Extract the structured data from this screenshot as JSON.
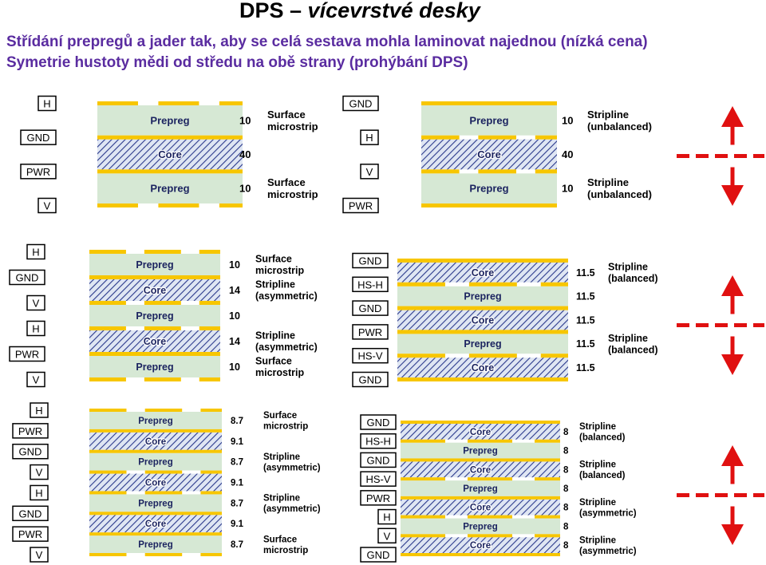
{
  "title_prefix": "DPS – ",
  "title_italic": "vícevrstvé desky",
  "subtitle1": "Střídání prepregů a jader tak, aby se celá sestava mohla laminovat najednou (nízká cena)",
  "subtitle2": "Symetrie hustoty mědi od středu na obě strany (prohýbání DPS)",
  "colors": {
    "copper": "#f7c600",
    "prepreg": "#d6e8d4",
    "core_stripe": "#2b3a8c",
    "core_bg": "#dfe6f3",
    "arrow": "#e01010",
    "text": "#000000",
    "subtitle": "#5a2ca0"
  },
  "stackups": [
    {
      "id": "4-layer-a",
      "layers": [
        {
          "name": "H",
          "type": "signal"
        },
        {
          "name": "GND",
          "type": "plane"
        },
        {
          "name": "PWR",
          "type": "plane"
        },
        {
          "name": "V",
          "type": "signal"
        }
      ],
      "dielectrics": [
        {
          "kind": "Prepreg",
          "thickness": "10",
          "note": "Surface microstrip"
        },
        {
          "kind": "Core",
          "thickness": "40",
          "note": ""
        },
        {
          "kind": "Prepreg",
          "thickness": "10",
          "note": "Surface microstrip"
        }
      ]
    },
    {
      "id": "4-layer-b",
      "layers": [
        {
          "name": "GND",
          "type": "plane"
        },
        {
          "name": "H",
          "type": "signal"
        },
        {
          "name": "V",
          "type": "signal"
        },
        {
          "name": "PWR",
          "type": "plane"
        }
      ],
      "dielectrics": [
        {
          "kind": "Prepreg",
          "thickness": "10",
          "note": "Stripline (unbalanced)"
        },
        {
          "kind": "Core",
          "thickness": "40",
          "note": ""
        },
        {
          "kind": "Prepreg",
          "thickness": "10",
          "note": "Stripline (unbalanced)"
        }
      ]
    },
    {
      "id": "6-layer-a",
      "layers": [
        {
          "name": "H",
          "type": "signal"
        },
        {
          "name": "GND",
          "type": "plane"
        },
        {
          "name": "V",
          "type": "signal"
        },
        {
          "name": "H",
          "type": "signal"
        },
        {
          "name": "PWR",
          "type": "plane"
        },
        {
          "name": "V",
          "type": "signal"
        }
      ],
      "dielectrics": [
        {
          "kind": "Prepreg",
          "thickness": "10",
          "note": "Surface microstrip"
        },
        {
          "kind": "Core",
          "thickness": "14",
          "note": "Stripline (asymmetric)"
        },
        {
          "kind": "Prepreg",
          "thickness": "10",
          "note": ""
        },
        {
          "kind": "Core",
          "thickness": "14",
          "note": "Stripline (asymmetric)"
        },
        {
          "kind": "Prepreg",
          "thickness": "10",
          "note": "Surface microstrip"
        }
      ]
    },
    {
      "id": "6-layer-b",
      "layers": [
        {
          "name": "GND",
          "type": "plane"
        },
        {
          "name": "HS-H",
          "type": "signal"
        },
        {
          "name": "GND",
          "type": "plane"
        },
        {
          "name": "PWR",
          "type": "plane"
        },
        {
          "name": "HS-V",
          "type": "signal"
        },
        {
          "name": "GND",
          "type": "plane"
        }
      ],
      "dielectrics": [
        {
          "kind": "Core",
          "thickness": "11.5",
          "note": "Stripline (balanced)"
        },
        {
          "kind": "Prepreg",
          "thickness": "11.5",
          "note": ""
        },
        {
          "kind": "Core",
          "thickness": "11.5",
          "note": ""
        },
        {
          "kind": "Prepreg",
          "thickness": "11.5",
          "note": "Stripline (balanced)"
        },
        {
          "kind": "Core",
          "thickness": "11.5",
          "note": ""
        }
      ]
    },
    {
      "id": "8-layer-a",
      "layers": [
        {
          "name": "H",
          "type": "signal"
        },
        {
          "name": "PWR",
          "type": "plane"
        },
        {
          "name": "GND",
          "type": "plane"
        },
        {
          "name": "V",
          "type": "signal"
        },
        {
          "name": "H",
          "type": "signal"
        },
        {
          "name": "GND",
          "type": "plane"
        },
        {
          "name": "PWR",
          "type": "plane"
        },
        {
          "name": "V",
          "type": "signal"
        }
      ],
      "dielectrics": [
        {
          "kind": "Prepreg",
          "thickness": "8.7",
          "note": "Surface microstrip"
        },
        {
          "kind": "Core",
          "thickness": "9.1",
          "note": ""
        },
        {
          "kind": "Prepreg",
          "thickness": "8.7",
          "note": "Stripline (asymmetric)"
        },
        {
          "kind": "Core",
          "thickness": "9.1",
          "note": ""
        },
        {
          "kind": "Prepreg",
          "thickness": "8.7",
          "note": "Stripline (asymmetric)"
        },
        {
          "kind": "Core",
          "thickness": "9.1",
          "note": ""
        },
        {
          "kind": "Prepreg",
          "thickness": "8.7",
          "note": "Surface microstrip"
        }
      ]
    },
    {
      "id": "8-layer-b",
      "layers": [
        {
          "name": "GND",
          "type": "plane"
        },
        {
          "name": "HS-H",
          "type": "signal"
        },
        {
          "name": "GND",
          "type": "plane"
        },
        {
          "name": "HS-V",
          "type": "signal"
        },
        {
          "name": "PWR",
          "type": "plane"
        },
        {
          "name": "H",
          "type": "signal"
        },
        {
          "name": "V",
          "type": "signal"
        },
        {
          "name": "GND",
          "type": "plane"
        }
      ],
      "dielectrics": [
        {
          "kind": "Core",
          "thickness": "8",
          "note": "Stripline (balanced)"
        },
        {
          "kind": "Prepreg",
          "thickness": "8",
          "note": ""
        },
        {
          "kind": "Core",
          "thickness": "8",
          "note": "Stripline (balanced)"
        },
        {
          "kind": "Prepreg",
          "thickness": "8",
          "note": ""
        },
        {
          "kind": "Core",
          "thickness": "8",
          "note": "Stripline (asymmetric)"
        },
        {
          "kind": "Prepreg",
          "thickness": "8",
          "note": ""
        },
        {
          "kind": "Core",
          "thickness": "8",
          "note": "Stripline (asymmetric)"
        }
      ]
    }
  ],
  "symmetry_markers": [
    {
      "id": "symmetry-row-1",
      "icon": "symmetry-arrows-icon"
    },
    {
      "id": "symmetry-row-2",
      "icon": "symmetry-arrows-icon"
    },
    {
      "id": "symmetry-row-3",
      "icon": "symmetry-arrows-icon"
    }
  ]
}
